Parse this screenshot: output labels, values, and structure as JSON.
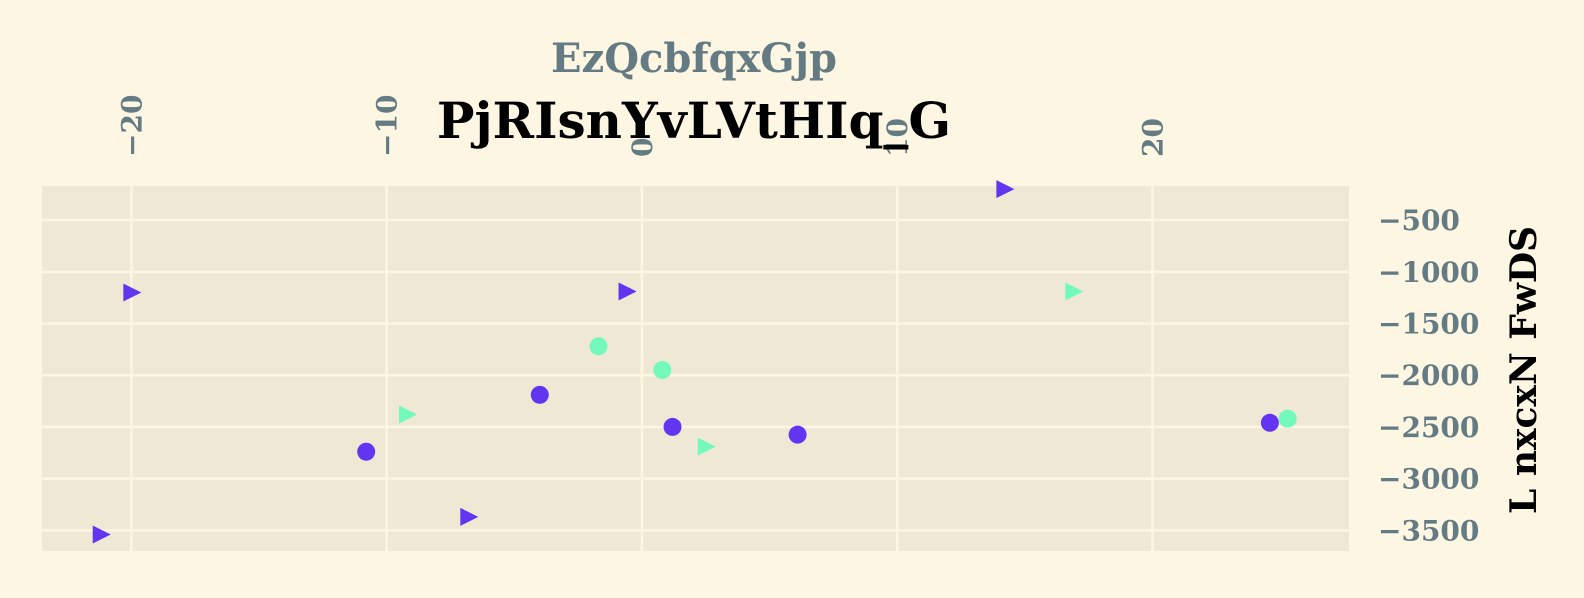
{
  "chart_data": {
    "type": "scatter",
    "title": "PjRIsnYvLVtHIq_G",
    "subtitle": "EzQcbfqxGjp",
    "xlabel": "",
    "ylabel": "L nxcxN FwDS",
    "xlim": [
      -23.5,
      27.7
    ],
    "ylim": [
      -3700,
      -170
    ],
    "x_ticks": [
      -20,
      -10,
      0,
      10,
      20
    ],
    "y_ticks": [
      -500,
      -1000,
      -1500,
      -2000,
      -2500,
      -3000,
      -3500
    ],
    "x_tick_labels": [
      "−20",
      "−10",
      "0",
      "10",
      "20"
    ],
    "y_tick_labels": [
      "−500",
      "−1000",
      "−1500",
      "−2000",
      "−2500",
      "−3000",
      "−3500"
    ],
    "x_axis_position": "top",
    "y_axis_position": "right",
    "grid": true,
    "colors": {
      "background": "#fdf6e3",
      "plot_area": "#eee8d5",
      "grid": "#fdf6e3",
      "tick_text": "#657b83",
      "purple": "#6236f0",
      "mint": "#74f9bd"
    },
    "series": [
      {
        "marker": "circle",
        "color": "#6236f0",
        "points": [
          {
            "x": -10.8,
            "y": -2740
          },
          {
            "x": -4.0,
            "y": -2190
          },
          {
            "x": 1.2,
            "y": -2500
          },
          {
            "x": 6.1,
            "y": -2575
          },
          {
            "x": 24.6,
            "y": -2460
          }
        ]
      },
      {
        "marker": "circle",
        "color": "#74f9bd",
        "points": [
          {
            "x": -1.7,
            "y": -1720
          },
          {
            "x": 0.8,
            "y": -1950
          },
          {
            "x": 25.3,
            "y": -2420
          }
        ]
      },
      {
        "marker": "triangle-right",
        "color": "#6236f0",
        "points": [
          {
            "x": -20.0,
            "y": -1200
          },
          {
            "x": -0.6,
            "y": -1190
          },
          {
            "x": 14.2,
            "y": -200
          },
          {
            "x": -6.8,
            "y": -3370
          },
          {
            "x": -21.2,
            "y": -3540
          }
        ]
      },
      {
        "marker": "triangle-right",
        "color": "#74f9bd",
        "points": [
          {
            "x": -9.2,
            "y": -2380
          },
          {
            "x": 2.5,
            "y": -2690
          },
          {
            "x": 16.9,
            "y": -1190
          }
        ]
      }
    ]
  }
}
